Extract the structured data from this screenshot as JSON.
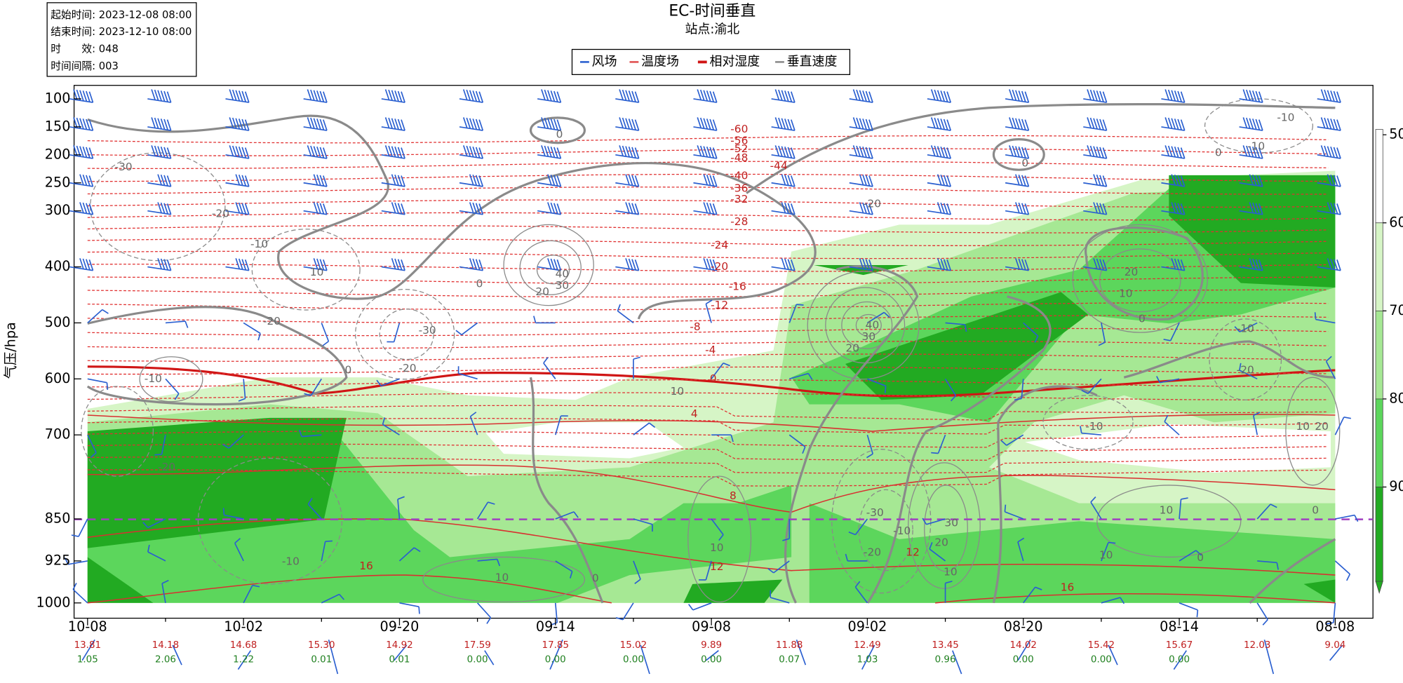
{
  "info": [
    "起始时间: 2023-12-08 08:00",
    "结束时间: 2023-12-10 08:00",
    "时　　效: 048",
    "时间间隔: 003"
  ],
  "title": "EC-时间垂直",
  "subtitle": "站点:渝北",
  "legend": [
    "风场",
    "温度场",
    "相对湿度",
    "垂直速度"
  ],
  "chart_data": {
    "type": "contour",
    "y_label": "气压/hpa",
    "ylim": [
      100,
      1000
    ],
    "yticks": [
      100,
      150,
      200,
      250,
      300,
      400,
      500,
      600,
      700,
      850,
      925,
      1000
    ],
    "x_labels": [
      "10-08",
      "10-02",
      "09-20",
      "09-14",
      "09-08",
      "09-02",
      "08-20",
      "08-14",
      "08-08"
    ],
    "colorbar": {
      "ticks": [
        50,
        60,
        70,
        80,
        90
      ],
      "colors": [
        "#ffffff",
        "#d6f5c6",
        "#a6e894",
        "#5cd65c",
        "#22aa22"
      ]
    },
    "temperature_labels": [
      -60,
      -56,
      -52,
      -48,
      -44,
      -40,
      -36,
      -32,
      -28,
      -24,
      -20,
      -16,
      -12,
      -8,
      -4,
      0,
      4,
      8,
      12,
      16,
      12,
      16
    ],
    "omega_labels": [
      0,
      -30,
      -20,
      -10,
      10,
      0,
      40,
      30,
      20,
      -20,
      -30,
      -20,
      0,
      -10,
      10,
      40,
      30,
      20,
      -20,
      -10,
      -10,
      0,
      0,
      20,
      10,
      0,
      -10,
      -20,
      -10,
      10,
      20,
      -30,
      -10,
      30,
      20,
      -20,
      10,
      10,
      0,
      10,
      0,
      -10,
      10,
      0,
      10,
      -20
    ]
  },
  "bottom_rows": {
    "temperature": [
      "13.81",
      "14.18",
      "14.68",
      "15.30",
      "14.92",
      "17.59",
      "17.85",
      "15.02",
      "9.89",
      "11.88",
      "12.49",
      "13.45",
      "14.02",
      "15.42",
      "15.67",
      "12.03",
      "9.04"
    ],
    "precipitation": [
      "1.05",
      "2.06",
      "1.22",
      "0.01",
      "0.01",
      "0.00",
      "0.00",
      "0.00",
      "0.00",
      "0.07",
      "1.03",
      "0.96",
      "0.00",
      "0.00",
      "0.00"
    ]
  }
}
